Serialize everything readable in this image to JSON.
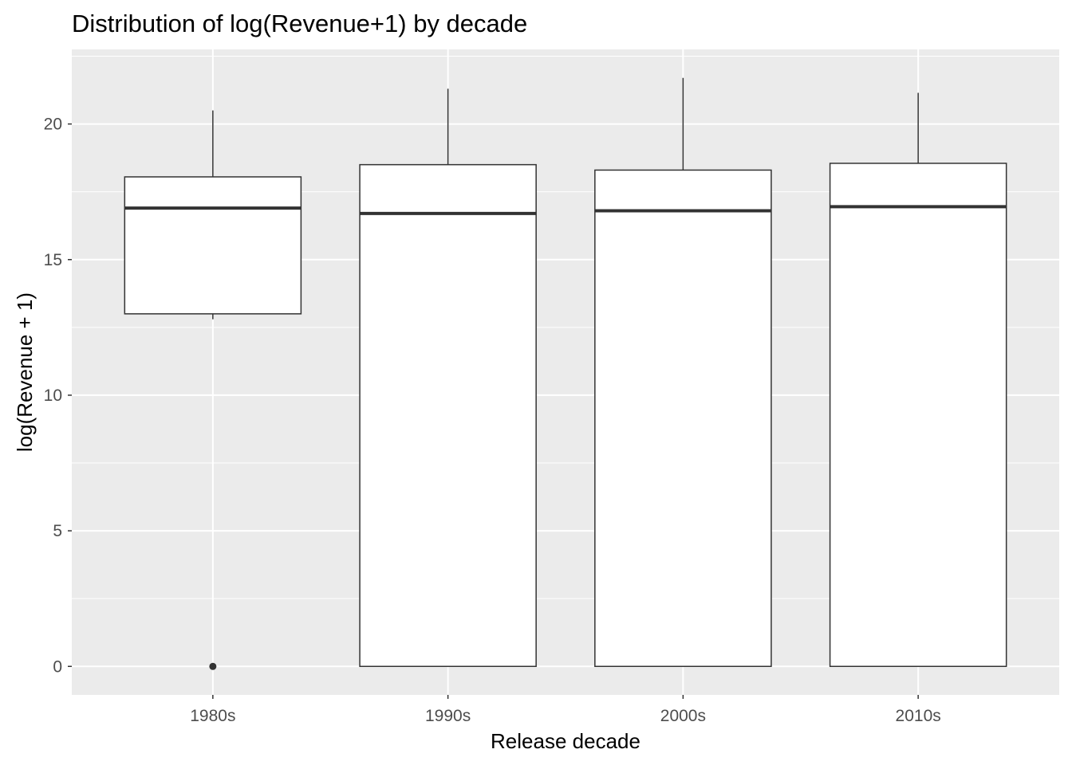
{
  "chart_data": {
    "type": "boxplot",
    "title": "Distribution of log(Revenue+1) by decade",
    "xlabel": "Release decade",
    "ylabel": "log(Revenue + 1)",
    "categories": [
      "1980s",
      "1990s",
      "2000s",
      "2010s"
    ],
    "ylim": [
      -1.05,
      22.75
    ],
    "yticks": [
      0,
      5,
      10,
      15,
      20
    ],
    "ytick_labels": [
      "0",
      "5",
      "10",
      "15",
      "20"
    ],
    "grid": true,
    "boxes": [
      {
        "category": "1980s",
        "whisker_low": 12.8,
        "q1": 13.0,
        "median": 16.9,
        "q3": 18.05,
        "whisker_high": 20.5,
        "outliers": [
          0
        ]
      },
      {
        "category": "1990s",
        "whisker_low": 0.0,
        "q1": 0.0,
        "median": 16.7,
        "q3": 18.5,
        "whisker_high": 21.3,
        "outliers": []
      },
      {
        "category": "2000s",
        "whisker_low": 0.0,
        "q1": 0.0,
        "median": 16.8,
        "q3": 18.3,
        "whisker_high": 21.7,
        "outliers": []
      },
      {
        "category": "2010s",
        "whisker_low": 0.0,
        "q1": 0.0,
        "median": 16.95,
        "q3": 18.55,
        "whisker_high": 21.15,
        "outliers": []
      }
    ],
    "colors": {
      "panel_background": "#ebebeb",
      "grid_line": "#ffffff",
      "box_fill": "#ffffff",
      "box_stroke": "#333333",
      "tick_label": "#4d4d4d"
    }
  }
}
